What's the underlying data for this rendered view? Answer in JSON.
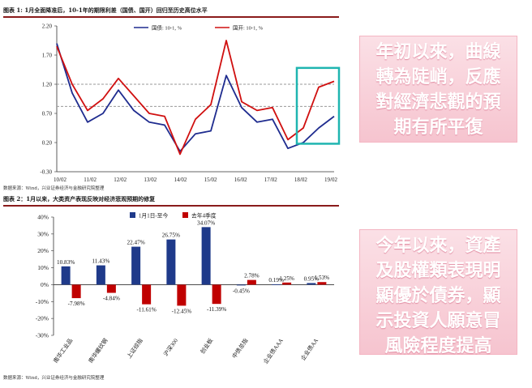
{
  "colors": {
    "series1": "#1f2c8f",
    "series2": "#d01010",
    "bar1": "#1f3a8a",
    "bar2": "#c00000",
    "highlight": "#1fb5b0",
    "callout_bg": "#f7cbd5"
  },
  "chart_data": [
    {
      "type": "line",
      "title": "图表 1: 1月全面降准后，10-1年的期限利差（国债、国开）回归至历史高位水平",
      "series": [
        {
          "name": "国债: 10-1, %",
          "x": [
            "2010-02",
            "2010-08",
            "2011-02",
            "2011-08",
            "2012-02",
            "2012-08",
            "2013-02",
            "2013-08",
            "2014-02",
            "2014-08",
            "2015-02",
            "2015-08",
            "2016-02",
            "2016-08",
            "2017-02",
            "2017-08",
            "2018-02",
            "2018-08",
            "2019-02"
          ],
          "values": [
            1.9,
            1.05,
            0.55,
            0.7,
            1.1,
            0.75,
            0.55,
            0.5,
            0.05,
            0.35,
            0.4,
            1.35,
            0.8,
            0.55,
            0.6,
            0.1,
            0.2,
            0.45,
            0.65
          ]
        },
        {
          "name": "国开: 10-1, %",
          "x": [
            "2010-02",
            "2010-08",
            "2011-02",
            "2011-08",
            "2012-02",
            "2012-08",
            "2013-02",
            "2013-08",
            "2014-02",
            "2014-08",
            "2015-02",
            "2015-08",
            "2016-02",
            "2016-08",
            "2017-02",
            "2017-08",
            "2018-02",
            "2018-08",
            "2019-02"
          ],
          "values": [
            1.85,
            1.2,
            0.75,
            0.95,
            1.3,
            1.0,
            0.7,
            0.65,
            0.0,
            0.6,
            0.85,
            1.95,
            0.9,
            0.75,
            0.8,
            0.25,
            0.45,
            1.15,
            1.25
          ]
        }
      ],
      "x_tick_labels": [
        "10/02",
        "11/02",
        "12/02",
        "13/02",
        "14/02",
        "15/02",
        "16/02",
        "17/02",
        "18/02",
        "19/02"
      ],
      "y_tick_labels": [
        "2.20",
        "1.70",
        "1.20",
        "0.70",
        "0.20",
        "-0.30"
      ],
      "ylim": [
        -0.3,
        2.2
      ],
      "reference_lines": [
        1.2,
        0.82
      ],
      "legend_position": "top-center",
      "source": "数据来源：Wind，兴业证券经济与金融研究院整理"
    },
    {
      "type": "bar",
      "title": "图表 2：1月以来，大类资产表现反映对经济悲观预期的修复",
      "categories": [
        "南华工业品",
        "南华螺纹钢",
        "上证综指",
        "沪深300",
        "创业板",
        "中债总指",
        "企业债AAA",
        "企业债AA"
      ],
      "series": [
        {
          "name": "1月1日-至今",
          "values": [
            10.83,
            11.43,
            22.47,
            26.75,
            34.07,
            -0.45,
            0.19,
            0.95
          ],
          "labels": [
            "10.83%",
            "11.43%",
            "22.47%",
            "26.75%",
            "34.07%",
            "-0.45%",
            "0.19%",
            "0.95%"
          ]
        },
        {
          "name": "去年4季度",
          "values": [
            -7.98,
            -4.84,
            -11.61,
            -12.45,
            -11.39,
            2.78,
            1.25,
            1.53
          ],
          "labels": [
            "-7.98%",
            "-4.84%",
            "-11.61%",
            "-12.45%",
            "-11.39%",
            "2.78%",
            "1.25%",
            "1.53%"
          ]
        }
      ],
      "y_tick_labels": [
        "40%",
        "30%",
        "20%",
        "10%",
        "0%",
        "-10%",
        "-20%",
        "-30%"
      ],
      "ylim": [
        -30,
        40
      ],
      "legend_position": "top-center",
      "source": "数据来源：Wind，兴业证券经济与金融研究院整理"
    }
  ],
  "callouts": [
    {
      "text": "年初以來，曲線\n轉為陡峭，反應\n對經濟悲觀的預\n期有所平復"
    },
    {
      "text": "今年以來，資產\n及股權類表現明\n顯優於債券，顯\n示投資人願意冒\n風險程度提高"
    }
  ]
}
